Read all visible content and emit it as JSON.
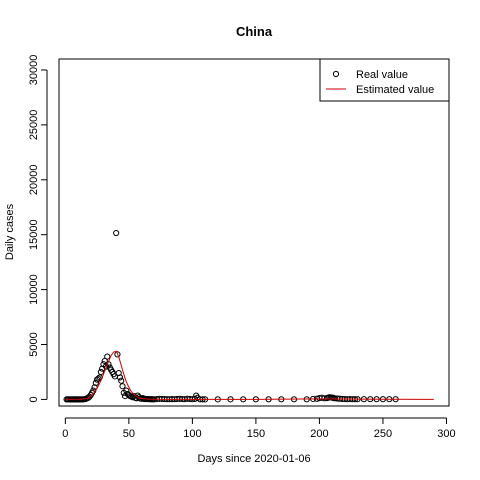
{
  "chart_data": {
    "type": "scatter",
    "title": "China",
    "xlabel": "Days since 2020-01-06",
    "ylabel": "Daily cases",
    "xlim": [
      -5,
      302
    ],
    "ylim": [
      -600,
      31000
    ],
    "x_ticks": [
      0,
      50,
      100,
      150,
      200,
      250,
      300
    ],
    "y_ticks": [
      0,
      5000,
      10000,
      15000,
      20000,
      25000,
      30000
    ],
    "grid": false,
    "legend_position": "top-right",
    "series": [
      {
        "name": "Real value",
        "kind": "points",
        "marker": "open-circle",
        "color": "#000000",
        "x": [
          1,
          2,
          3,
          4,
          5,
          6,
          7,
          8,
          9,
          10,
          11,
          12,
          13,
          14,
          15,
          16,
          17,
          18,
          19,
          20,
          21,
          22,
          23,
          24,
          25,
          26,
          27,
          28,
          29,
          30,
          31,
          32,
          33,
          34,
          35,
          36,
          37,
          38,
          39,
          40,
          41,
          42,
          43,
          44,
          45,
          46,
          47,
          48,
          49,
          50,
          51,
          52,
          53,
          54,
          55,
          56,
          57,
          58,
          59,
          60,
          61,
          62,
          63,
          64,
          65,
          66,
          67,
          68,
          69,
          70,
          72,
          74,
          76,
          78,
          80,
          82,
          84,
          86,
          88,
          90,
          92,
          94,
          96,
          98,
          100,
          102,
          103,
          104,
          106,
          108,
          110,
          120,
          130,
          140,
          150,
          160,
          170,
          180,
          190,
          195,
          198,
          200,
          202,
          204,
          206,
          207,
          208,
          209,
          210,
          211,
          212,
          214,
          216,
          218,
          220,
          222,
          224,
          226,
          228,
          230,
          235,
          240,
          245,
          250,
          255,
          260
        ],
        "y": [
          0,
          0,
          0,
          0,
          0,
          0,
          0,
          0,
          0,
          0,
          0,
          0,
          0,
          5,
          20,
          40,
          100,
          150,
          250,
          400,
          600,
          800,
          1100,
          1500,
          1800,
          1900,
          2000,
          2500,
          2800,
          3200,
          3500,
          3000,
          3900,
          3200,
          2900,
          2700,
          2500,
          2300,
          2100,
          15150,
          4100,
          2400,
          2000,
          1700,
          1200,
          600,
          300,
          800,
          500,
          400,
          300,
          250,
          200,
          300,
          150,
          100,
          350,
          200,
          80,
          60,
          120,
          40,
          40,
          30,
          30,
          20,
          20,
          15,
          10,
          10,
          30,
          50,
          40,
          30,
          20,
          20,
          25,
          20,
          40,
          50,
          30,
          20,
          60,
          40,
          20,
          50,
          350,
          150,
          10,
          5,
          5,
          5,
          5,
          10,
          10,
          10,
          10,
          10,
          10,
          40,
          60,
          120,
          150,
          100,
          120,
          160,
          200,
          180,
          160,
          140,
          100,
          80,
          60,
          40,
          30,
          20,
          30,
          20,
          20,
          20,
          20,
          20,
          20,
          20,
          20,
          20
        ]
      },
      {
        "name": "Estimated value",
        "kind": "line",
        "color": "#cc0000",
        "x": [
          0,
          10,
          15,
          18,
          20,
          22,
          25,
          28,
          30,
          33,
          36,
          38,
          40,
          42,
          44,
          46,
          48,
          50,
          52,
          55,
          58,
          60,
          65,
          70,
          80,
          100,
          150,
          200,
          250,
          290
        ],
        "y": [
          0,
          10,
          50,
          120,
          250,
          500,
          1000,
          1700,
          2300,
          3200,
          4000,
          4300,
          4400,
          3900,
          3100,
          2300,
          1600,
          1100,
          700,
          350,
          150,
          80,
          30,
          10,
          3,
          2,
          5,
          50,
          10,
          3
        ]
      }
    ]
  }
}
